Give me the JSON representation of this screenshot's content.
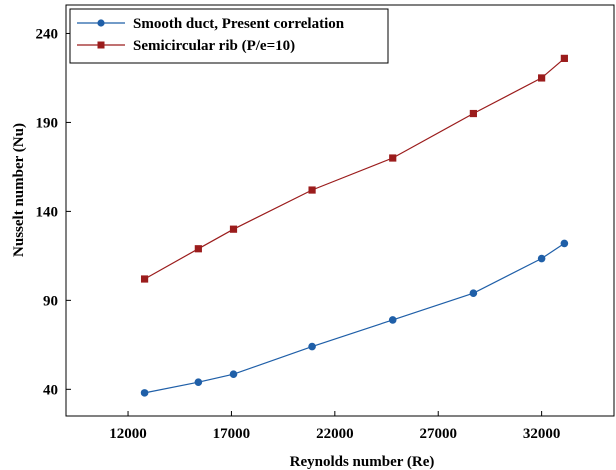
{
  "chart_data": {
    "type": "line",
    "xlabel": "Reynolds number (Re)",
    "ylabel": "Nusselt  number (Nu)",
    "xlim": [
      9000,
      35500
    ],
    "ylim": [
      25,
      256
    ],
    "xticks": [
      "12000",
      "17000",
      "22000",
      "27000",
      "32000"
    ],
    "xtick_values": [
      12000,
      17000,
      22000,
      27000,
      32000
    ],
    "yticks": [
      "40",
      "90",
      "140",
      "190",
      "240"
    ],
    "ytick_values": [
      40,
      90,
      140,
      190,
      240
    ],
    "grid": false,
    "legend_position": "top-left",
    "series": [
      {
        "name": "Smooth duct, Present correlation",
        "color": "#1f5fa8",
        "marker": "circle",
        "x": [
          12800,
          15400,
          17100,
          20900,
          24800,
          28700,
          32000,
          33100
        ],
        "y": [
          38,
          44,
          48.5,
          64,
          79,
          94,
          113.5,
          122
        ]
      },
      {
        "name": "Semicircular rib (P/e=10)",
        "color": "#9b1c1c",
        "marker": "square",
        "x": [
          12800,
          15400,
          17100,
          20900,
          24800,
          28700,
          32000,
          33100
        ],
        "y": [
          102,
          119,
          130,
          152,
          170,
          195,
          215,
          226
        ]
      }
    ]
  }
}
